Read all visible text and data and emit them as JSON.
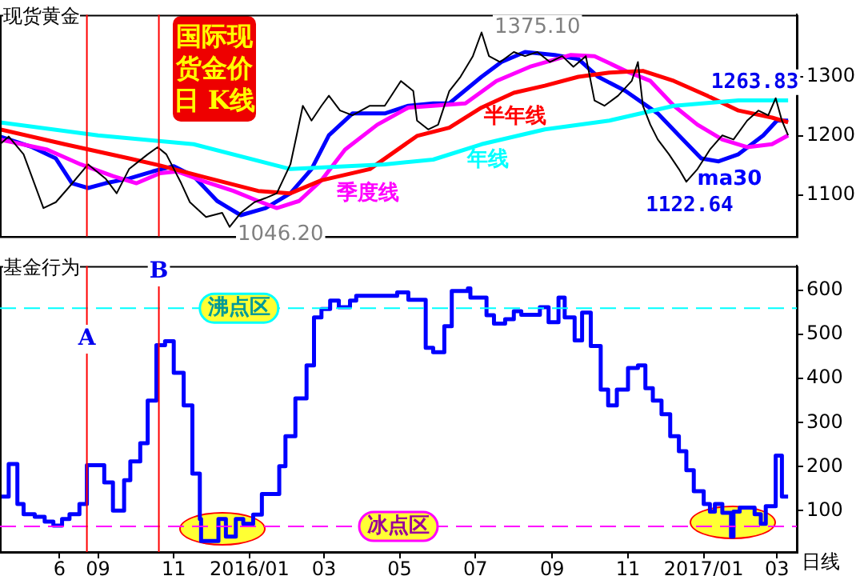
{
  "chart_data": [
    {
      "type": "line",
      "title": "国际现货金价日 K线",
      "ylabel": "现货黄金",
      "xlim": [
        "2015-06-14",
        "2017-03-17"
      ],
      "ylim": [
        1030,
        1405
      ],
      "yticks": [
        1100,
        1200,
        1300
      ],
      "tick_labels": "y",
      "grid": false,
      "series": [
        {
          "color": "#000000",
          "x": [
            "2015-06-14",
            "2015-06-21",
            "2015-07-03",
            "2015-07-19",
            "2015-07-29",
            "2015-08-08",
            "2015-08-24",
            "2015-09-07",
            "2015-09-16",
            "2015-09-26",
            "2015-10-11",
            "2015-10-19",
            "2015-10-26",
            "2015-11-07",
            "2015-11-14",
            "2015-11-27",
            "2015-12-10",
            "2015-12-16",
            "2015-12-25",
            "2016-01-05",
            "2016-01-14",
            "2016-01-23",
            "2016-02-03",
            "2016-02-08",
            "2016-02-13",
            "2016-02-20",
            "2016-02-28",
            "2016-03-05",
            "2016-03-14",
            "2016-03-24",
            "2016-04-07",
            "2016-04-19",
            "2016-05-02",
            "2016-05-12",
            "2016-05-15",
            "2016-05-24",
            "2016-06-01",
            "2016-06-10",
            "2016-06-19",
            "2016-06-29",
            "2016-07-06",
            "2016-07-12",
            "2016-07-21",
            "2016-08-01",
            "2016-08-10",
            "2016-08-20",
            "2016-08-30",
            "2016-09-09",
            "2016-09-18",
            "2016-09-28",
            "2016-10-05",
            "2016-10-13",
            "2016-10-24",
            "2016-11-04",
            "2016-11-09",
            "2016-11-13",
            "2016-11-19",
            "2016-11-25",
            "2016-12-04",
            "2016-12-12",
            "2016-12-18",
            "2016-12-27",
            "2017-01-06",
            "2017-01-16",
            "2017-01-25",
            "2017-02-05",
            "2017-02-14",
            "2017-02-22",
            "2017-02-28",
            "2017-03-05",
            "2017-03-10"
          ],
          "values": [
            1186,
            1199,
            1169,
            1078,
            1088,
            1112,
            1152,
            1128,
            1103,
            1144,
            1169,
            1181,
            1169,
            1120,
            1088,
            1063,
            1070,
            1046.2,
            1070,
            1088,
            1095,
            1103,
            1152,
            1201,
            1251,
            1226,
            1251,
            1268,
            1243,
            1235,
            1251,
            1251,
            1293,
            1276,
            1226,
            1211,
            1219,
            1276,
            1300,
            1335,
            1375.1,
            1335,
            1325,
            1342,
            1335,
            1342,
            1325,
            1335,
            1317,
            1335,
            1260,
            1251,
            1268,
            1293,
            1325,
            1251,
            1219,
            1194,
            1169,
            1144,
            1122.64,
            1144,
            1177,
            1201,
            1194,
            1226,
            1243,
            1235,
            1263.83,
            1226,
            1201
          ]
        },
        {
          "name": "年线",
          "color": "#00ffff",
          "x": [
            "2015-06-14",
            "2015-09-01",
            "2015-11-17",
            "2016-02-03",
            "2016-04-19",
            "2016-05-28",
            "2016-07-06",
            "2016-08-26",
            "2016-10-17",
            "2016-12-08",
            "2017-01-29",
            "2017-03-10"
          ],
          "values": [
            1223,
            1201,
            1186,
            1144,
            1152,
            1160,
            1186,
            1211,
            1226,
            1251,
            1260,
            1260
          ]
        },
        {
          "name": "半年线",
          "color": "#ff0000",
          "x": [
            "2015-06-14",
            "2015-08-05",
            "2015-09-26",
            "2015-10-21",
            "2015-11-30",
            "2016-01-08",
            "2016-02-03",
            "2016-02-28",
            "2016-04-07",
            "2016-05-15",
            "2016-06-10",
            "2016-07-06",
            "2016-08-01",
            "2016-08-26",
            "2016-09-22",
            "2016-10-17",
            "2016-11-13",
            "2016-12-08",
            "2017-01-04",
            "2017-01-29",
            "2017-02-25",
            "2017-03-10"
          ],
          "values": [
            1211,
            1186,
            1162,
            1150,
            1128,
            1107,
            1103,
            1125,
            1144,
            1200,
            1214,
            1248,
            1273,
            1285,
            1300,
            1307,
            1310,
            1293,
            1268,
            1243,
            1231,
            1223
          ]
        },
        {
          "name": "季度线",
          "color": "#ff00ff",
          "x": [
            "2015-06-14",
            "2015-07-22",
            "2015-08-18",
            "2015-09-13",
            "2015-10-02",
            "2015-10-21",
            "2015-11-04",
            "2015-11-23",
            "2015-12-19",
            "2016-01-08",
            "2016-01-23",
            "2016-02-10",
            "2016-02-28",
            "2016-03-18",
            "2016-04-13",
            "2016-05-08",
            "2016-05-28",
            "2016-06-23",
            "2016-07-18",
            "2016-08-14",
            "2016-09-16",
            "2016-10-05",
            "2016-10-30",
            "2016-11-19",
            "2016-12-08",
            "2016-12-27",
            "2017-01-16",
            "2017-02-05",
            "2017-02-25",
            "2017-03-10"
          ],
          "values": [
            1194,
            1177,
            1152,
            1132,
            1120,
            1137,
            1140,
            1125,
            1107,
            1090,
            1078,
            1090,
            1125,
            1177,
            1219,
            1248,
            1251,
            1255,
            1293,
            1317,
            1337,
            1335,
            1310,
            1293,
            1251,
            1219,
            1194,
            1181,
            1186,
            1201
          ]
        },
        {
          "name": "ma30",
          "color": "#0000ff",
          "x": [
            "2015-06-14",
            "2015-07-10",
            "2015-07-29",
            "2015-08-11",
            "2015-08-24",
            "2015-09-07",
            "2015-09-26",
            "2015-10-15",
            "2015-11-01",
            "2015-11-17",
            "2015-12-06",
            "2015-12-25",
            "2016-01-14",
            "2016-02-03",
            "2016-02-20",
            "2016-03-05",
            "2016-03-24",
            "2016-04-19",
            "2016-05-08",
            "2016-05-28",
            "2016-06-10",
            "2016-07-06",
            "2016-07-22",
            "2016-08-10",
            "2016-09-03",
            "2016-09-22",
            "2016-10-08",
            "2016-10-30",
            "2016-11-25",
            "2016-12-12",
            "2016-12-30",
            "2017-01-13",
            "2017-01-29",
            "2017-02-18",
            "2017-03-01",
            "2017-03-10"
          ],
          "values": [
            1199,
            1181,
            1162,
            1120,
            1112,
            1120,
            1128,
            1140,
            1149,
            1132,
            1090,
            1066,
            1078,
            1103,
            1144,
            1201,
            1238,
            1238,
            1251,
            1255,
            1255,
            1300,
            1325,
            1342,
            1337,
            1330,
            1300,
            1276,
            1238,
            1201,
            1162,
            1157,
            1169,
            1201,
            1226,
            1226
          ]
        }
      ],
      "ref_lines": [
        {
          "axis": "x",
          "value": "2015-08-23",
          "color": "#ff0000"
        },
        {
          "axis": "x",
          "value": "2015-10-20",
          "color": "#ff0000"
        }
      ],
      "annotations": [
        {
          "text": "1375.10",
          "x": "2016-07-06",
          "y": 1375.1
        },
        {
          "text": "1046.20",
          "x": "2015-12-16",
          "y": 1046.2
        },
        {
          "text": "1122.64",
          "x": "2016-12-18",
          "y": 1122.64
        },
        {
          "text": "1263.83",
          "x": "2017-02-28",
          "y": 1263.83
        }
      ]
    },
    {
      "type": "step",
      "ylabel": "基金行为",
      "xlim": [
        "2015-06-14",
        "2017-03-17"
      ],
      "ylim": [
        6,
        656
      ],
      "yticks": [
        100,
        200,
        300,
        400,
        500,
        600
      ],
      "grid": false,
      "xticks": [
        {
          "value": "2015-08-01",
          "label": "6"
        },
        {
          "value": "2015-09-01",
          "label": "09"
        },
        {
          "value": "2015-11-01",
          "label": "11"
        },
        {
          "value": "2016-01-01",
          "label": "2016/01"
        },
        {
          "value": "2016-03-01",
          "label": "03"
        },
        {
          "value": "2016-05-01",
          "label": "05"
        },
        {
          "value": "2016-07-01",
          "label": "07"
        },
        {
          "value": "2016-09-01",
          "label": "09"
        },
        {
          "value": "2016-11-01",
          "label": "11"
        },
        {
          "value": "2017-01-01",
          "label": "2017/01"
        },
        {
          "value": "2017-03-01",
          "label": "03"
        }
      ],
      "series": [
        {
          "color": "#0000ff",
          "x": [
            "2015-06-14",
            "2015-06-21",
            "2015-06-28",
            "2015-07-03",
            "2015-07-12",
            "2015-07-20",
            "2015-07-27",
            "2015-08-03",
            "2015-08-09",
            "2015-08-17",
            "2015-08-23",
            "2015-09-06",
            "2015-09-13",
            "2015-09-22",
            "2015-09-27",
            "2015-10-05",
            "2015-10-11",
            "2015-10-18",
            "2015-10-25",
            "2015-11-01",
            "2015-11-09",
            "2015-11-16",
            "2015-11-22",
            "2015-11-23",
            "2015-12-07",
            "2015-12-13",
            "2015-12-21",
            "2015-12-27",
            "2016-01-04",
            "2016-01-11",
            "2016-01-25",
            "2016-01-30",
            "2016-02-07",
            "2016-02-16",
            "2016-02-22",
            "2016-02-28",
            "2016-03-06",
            "2016-03-13",
            "2016-03-22",
            "2016-03-27",
            "2016-04-29",
            "2016-05-08",
            "2016-05-22",
            "2016-05-28",
            "2016-06-06",
            "2016-06-12",
            "2016-06-25",
            "2016-06-27",
            "2016-07-10",
            "2016-07-16",
            "2016-07-25",
            "2016-08-01",
            "2016-08-07",
            "2016-08-22",
            "2016-08-29",
            "2016-09-06",
            "2016-09-11",
            "2016-09-19",
            "2016-09-25",
            "2016-10-02",
            "2016-10-10",
            "2016-10-16",
            "2016-10-23",
            "2016-11-01",
            "2016-11-09",
            "2016-11-15",
            "2016-11-21",
            "2016-11-28",
            "2016-12-05",
            "2016-12-12",
            "2016-12-18",
            "2016-12-24",
            "2017-01-01",
            "2017-01-06",
            "2017-01-10",
            "2017-01-16",
            "2017-01-23",
            "2017-01-25",
            "2017-01-30",
            "2017-02-11",
            "2017-02-16",
            "2017-02-20",
            "2017-02-28",
            "2017-03-05",
            "2017-03-10"
          ],
          "values": [
            132,
            206,
            115,
            92,
            86,
            75,
            66,
            81,
            92,
            115,
            203,
            164,
            100,
            169,
            212,
            253,
            350,
            476,
            485,
            413,
            339,
            184,
            81,
            31,
            81,
            41,
            81,
            70,
            91,
            138,
            201,
            269,
            355,
            430,
            539,
            558,
            577,
            562,
            577,
            588,
            596,
            579,
            470,
            460,
            519,
            599,
            605,
            584,
            544,
            525,
            535,
            553,
            545,
            562,
            528,
            584,
            539,
            487,
            550,
            474,
            375,
            339,
            375,
            424,
            430,
            378,
            350,
            319,
            269,
            235,
            192,
            144,
            115,
            98,
            115,
            95,
            41,
            98,
            107,
            92,
            70,
            110,
            225,
            132,
            132
          ]
        }
      ],
      "ref_lines": [
        {
          "axis": "y",
          "value": 560,
          "label": "沸点区",
          "color": "#00ffff",
          "line_style": "dashed"
        },
        {
          "axis": "y",
          "value": 64,
          "label": "冰点区",
          "color": "#ff00ff",
          "line_style": "dashed"
        },
        {
          "axis": "x",
          "value": "2015-08-23",
          "label": "A",
          "color": "#ff0000"
        },
        {
          "axis": "x",
          "value": "2015-10-20",
          "label": "B",
          "color": "#ff0000"
        }
      ],
      "annotations": [
        "日线"
      ]
    }
  ]
}
